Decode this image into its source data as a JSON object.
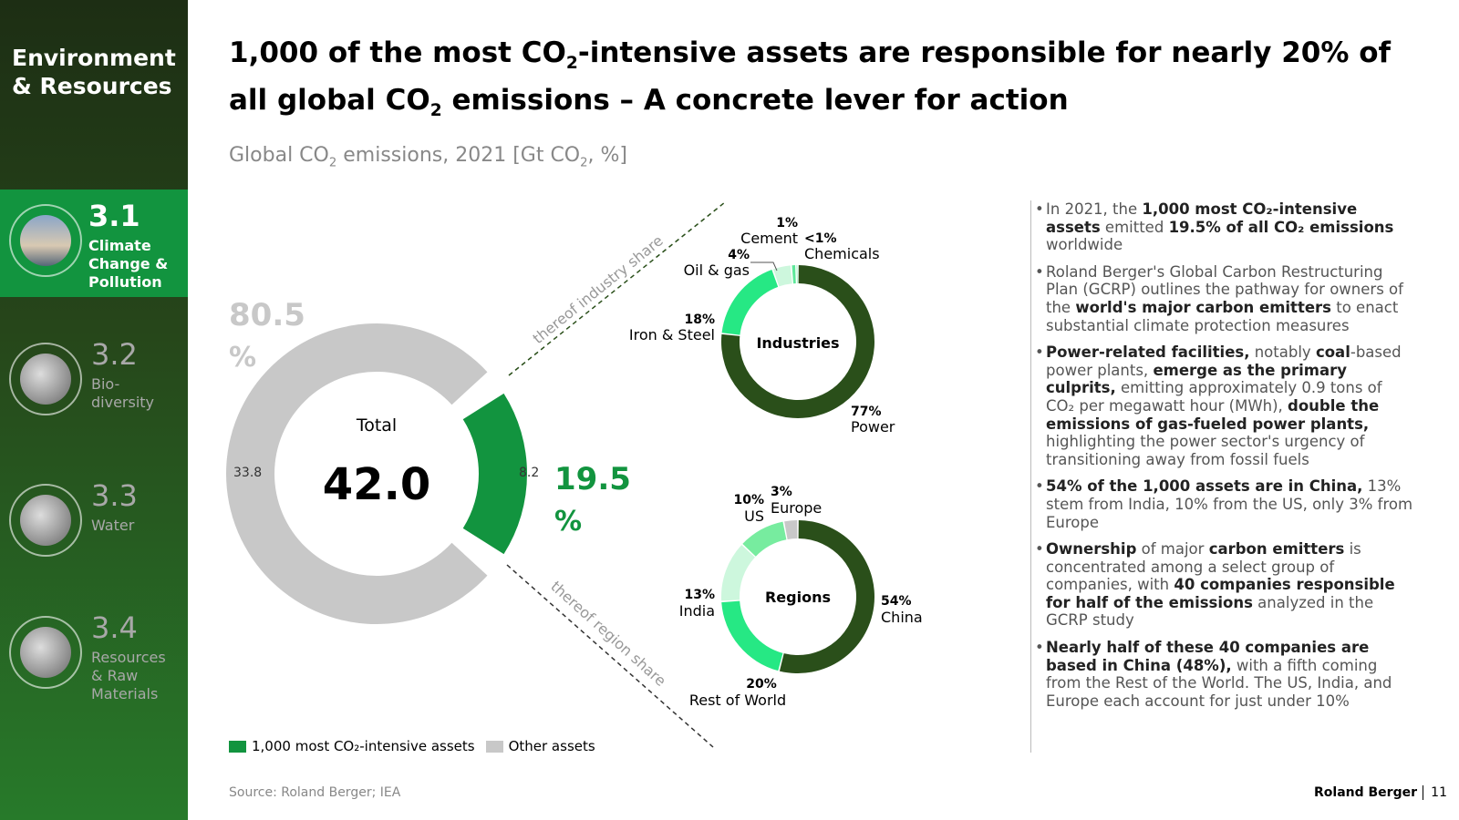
{
  "sidebar": {
    "brand_line1": "Environment",
    "brand_line2": "& Resources",
    "items": [
      {
        "num": "3.1",
        "label": "Climate Change & Pollution"
      },
      {
        "num": "3.2",
        "label": "Bio-diversity"
      },
      {
        "num": "3.3",
        "label": "Water"
      },
      {
        "num": "3.4",
        "label": "Resources & Raw Materials"
      }
    ]
  },
  "title": {
    "p1": "1,000 of the most CO",
    "sub1": "2",
    "p2": "-intensive assets are responsible for nearly 20% of all global CO",
    "sub2": "2",
    "p3": " emissions – A concrete lever for action"
  },
  "subtitle": {
    "p1": "Global CO",
    "sub": "2",
    "p2": " emissions, 2021 [Gt CO",
    "sub2": "2",
    "p3": ", %]"
  },
  "chart_data": [
    {
      "type": "pie",
      "name": "total",
      "center_label": "Total",
      "total": "42.0",
      "values": [
        8.2,
        33.8
      ],
      "labels": [
        "8.2",
        "33.8"
      ],
      "shares": [
        "19.5 %",
        "80.5 %"
      ],
      "series": [
        "1,000 most CO2-intensive assets",
        "Other assets"
      ],
      "colors": [
        "#12943f",
        "#c8c8c8"
      ]
    },
    {
      "type": "pie",
      "name": "industries",
      "center_label": "Industries",
      "categories": [
        "Power",
        "Iron & Steel",
        "Oil & gas",
        "Cement",
        "Chemicals"
      ],
      "values": [
        77,
        18,
        4,
        1,
        0.4
      ],
      "value_labels": [
        "77%",
        "18%",
        "4%",
        "1%",
        "<1%"
      ],
      "colors": [
        "#2a4f1a",
        "#26e884",
        "#cdf7dd",
        "#5ee89a",
        "#26e884"
      ]
    },
    {
      "type": "pie",
      "name": "regions",
      "center_label": "Regions",
      "categories": [
        "China",
        "Rest of World",
        "India",
        "US",
        "Europe"
      ],
      "values": [
        54,
        20,
        13,
        10,
        3
      ],
      "value_labels": [
        "54%",
        "20%",
        "13%",
        "10%",
        "3%"
      ],
      "colors": [
        "#2a4f1a",
        "#26e884",
        "#cdf7dd",
        "#77ec9f",
        "#c8c8c8"
      ]
    }
  ],
  "connectors": {
    "industry": "thereof industry share",
    "region": "thereof region share"
  },
  "legend": {
    "a": "1,000 most CO₂-intensive assets",
    "b": "Other assets"
  },
  "bullets": [
    "In 2021, the <b>1,000 most CO₂-intensive assets</b> emitted <b>19.5% of all CO₂ emissions</b> worldwide",
    "Roland Berger's Global Carbon Restructuring Plan (GCRP) outlines the pathway for owners of the <b>world's major carbon emitters</b> to enact substantial climate protection measures",
    "<b>Power-related facilities,</b> notably <b>coal</b>-based power plants, <b>emerge as the primary culprits,</b> emitting approximately 0.9 tons of CO₂ per megawatt hour (MWh), <b>double the emissions of gas-fueled power plants,</b> highlighting the power sector's urgency of transitioning away from fossil fuels",
    "<b>54% of the 1,000 assets are in China,</b> 13% stem from India, 10% from the US, only 3% from Europe",
    "<b>Ownership</b> of major <b>carbon emitters</b> is concentrated among a select group of companies, with <b>40 companies responsible for half of the emissions</b> analyzed in the GCRP study",
    "<b>Nearly half of these 40 companies are based in China (48%),</b> with a fifth coming from the Rest of the World. The US, India, and Europe each account for just under 10%"
  ],
  "source": "Source: Roland Berger; IEA",
  "footer": "Roland Berger",
  "page": "11"
}
